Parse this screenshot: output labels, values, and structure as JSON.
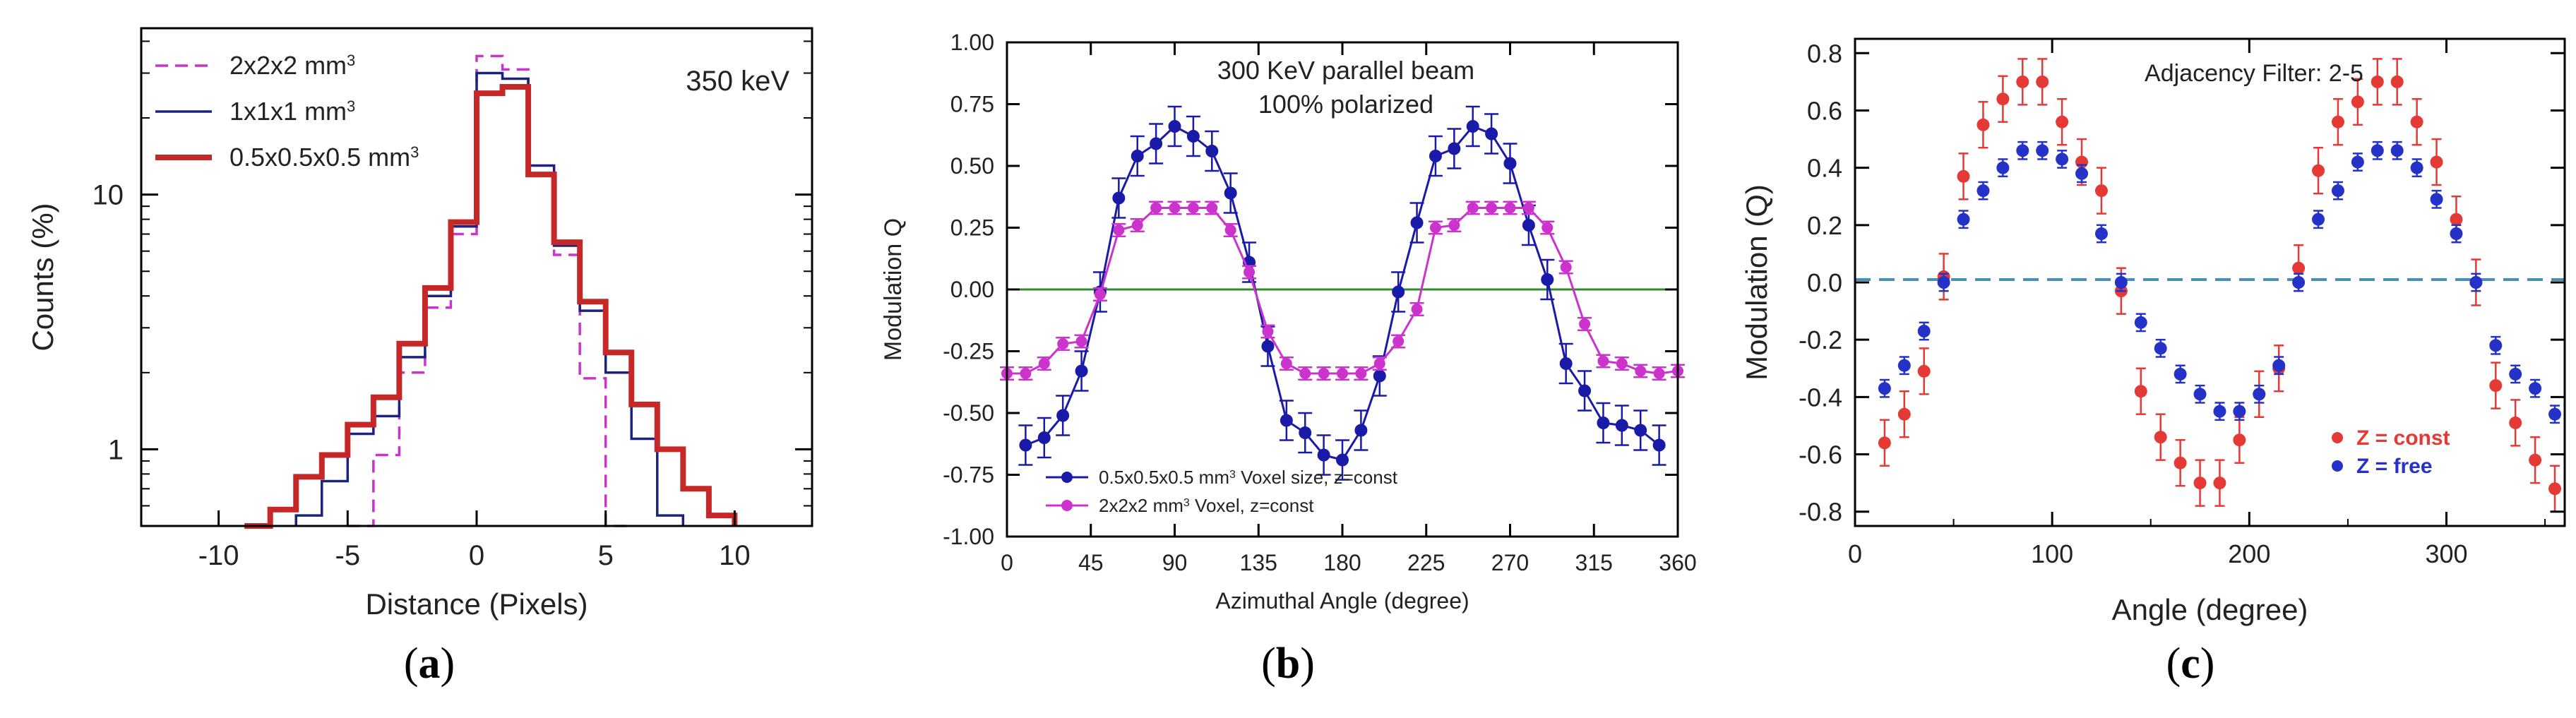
{
  "captions": {
    "a": "a",
    "b": "b",
    "c": "c"
  },
  "colors": {
    "magenta": "#cc33cc",
    "navy": "#1a237e",
    "red": "#c62828",
    "blue": "#1a1aa8",
    "green": "#2e8b2e",
    "cRed": "#e53935",
    "cBlue": "#2532c8",
    "dashed": "#4a8fb5"
  },
  "chart_data": [
    {
      "id": "a",
      "type": "line",
      "title": "",
      "annotation": "350 keV",
      "xlabel": "Distance (Pixels)",
      "ylabel": "Counts (%)",
      "xlim": [
        -13,
        13
      ],
      "ylim": [
        0.5,
        45
      ],
      "yscale": "log",
      "xticks": [
        -10,
        -5,
        0,
        5,
        10
      ],
      "yticks": [
        1,
        10
      ],
      "legend_position": "top-left",
      "series": [
        {
          "name": "2x2x2 mm",
          "superscript": "3",
          "style": "dashed",
          "color": "#cc33cc",
          "edges": [
            -5,
            -4,
            -3,
            -2,
            -1,
            0,
            1,
            2,
            3,
            4,
            5,
            6
          ],
          "values": [
            0.5,
            0.95,
            2.0,
            3.6,
            7.0,
            35.0,
            31.0,
            12.0,
            5.8,
            1.9,
            0.5
          ]
        },
        {
          "name": "1x1x1 mm",
          "superscript": "3",
          "style": "solid",
          "color": "#1a237e",
          "edges": [
            -7,
            -6,
            -5,
            -4,
            -3,
            -2,
            -1,
            0,
            1,
            2,
            3,
            4,
            5,
            6,
            7,
            8
          ],
          "values": [
            0.55,
            0.75,
            1.15,
            1.35,
            2.3,
            4.0,
            7.5,
            30.0,
            28.5,
            13.0,
            6.3,
            3.5,
            2.0,
            1.1,
            0.55
          ]
        },
        {
          "name": "0.5x0.5x0.5 mm",
          "superscript": "3",
          "style": "thick",
          "color": "#c62828",
          "edges": [
            -9,
            -8,
            -7,
            -6,
            -5,
            -4,
            -3,
            -2,
            -1,
            0,
            1,
            2,
            3,
            4,
            5,
            6,
            7,
            8,
            9,
            10
          ],
          "values": [
            0.5,
            0.58,
            0.78,
            0.95,
            1.25,
            1.6,
            2.6,
            4.3,
            7.8,
            25.0,
            26.5,
            12.0,
            6.5,
            3.8,
            2.4,
            1.5,
            1.0,
            0.7,
            0.55
          ]
        }
      ]
    },
    {
      "id": "b",
      "type": "line",
      "title": "300 KeV parallel beam",
      "subtitle": "100% polarized",
      "xlabel": "Azimuthal Angle (degree)",
      "ylabel": "Modulation Q",
      "xlim": [
        0,
        360
      ],
      "ylim": [
        -1.0,
        1.0
      ],
      "xticks": [
        0,
        45,
        90,
        135,
        180,
        225,
        270,
        315,
        360
      ],
      "yticks": [
        "-1.00",
        "-0.75",
        "-0.50",
        "-0.25",
        "0.00",
        "0.25",
        "0.50",
        "0.75",
        "1.00"
      ],
      "zero_line": true,
      "legend_position": "bottom-left",
      "series": [
        {
          "name": "0.5x0.5x0.5 mm",
          "superscript": "3",
          "suffix": " Voxel size, z=const",
          "color": "#1a1aa8",
          "x": [
            10,
            20,
            30,
            40,
            50,
            60,
            70,
            80,
            90,
            100,
            110,
            120,
            130,
            140,
            150,
            160,
            170,
            180,
            190,
            200,
            210,
            220,
            230,
            240,
            250,
            260,
            270,
            280,
            290,
            300,
            310,
            320,
            330,
            340,
            350
          ],
          "y": [
            -0.63,
            -0.6,
            -0.51,
            -0.33,
            -0.01,
            0.37,
            0.54,
            0.59,
            0.66,
            0.62,
            0.56,
            0.39,
            0.11,
            -0.23,
            -0.53,
            -0.58,
            -0.67,
            -0.69,
            -0.57,
            -0.35,
            -0.01,
            0.27,
            0.54,
            0.57,
            0.66,
            0.63,
            0.51,
            0.26,
            0.04,
            -0.3,
            -0.41,
            -0.54,
            -0.55,
            -0.57,
            -0.63
          ],
          "error": 0.08
        },
        {
          "name": "2x2x2 mm",
          "superscript": "3",
          "suffix": " Voxel, z=const",
          "color": "#cc33cc",
          "x": [
            0,
            10,
            20,
            30,
            40,
            50,
            60,
            70,
            80,
            90,
            100,
            110,
            120,
            130,
            140,
            150,
            160,
            170,
            180,
            190,
            200,
            210,
            220,
            230,
            240,
            250,
            260,
            270,
            280,
            290,
            300,
            310,
            320,
            330,
            340,
            350,
            360
          ],
          "y": [
            -0.34,
            -0.34,
            -0.3,
            -0.22,
            -0.21,
            -0.02,
            0.24,
            0.26,
            0.33,
            0.33,
            0.33,
            0.33,
            0.24,
            0.07,
            -0.17,
            -0.3,
            -0.34,
            -0.34,
            -0.34,
            -0.34,
            -0.3,
            -0.21,
            -0.08,
            0.25,
            0.26,
            0.33,
            0.33,
            0.33,
            0.33,
            0.25,
            0.09,
            -0.14,
            -0.29,
            -0.3,
            -0.33,
            -0.34,
            -0.33
          ],
          "error": 0.025
        }
      ]
    },
    {
      "id": "c",
      "type": "scatter",
      "title": "Adjacency Filter: 2-5",
      "xlabel": "Angle (degree)",
      "ylabel": "Modulation (Q)",
      "xlim": [
        0,
        360
      ],
      "ylim": [
        -0.85,
        0.85
      ],
      "xticks": [
        0,
        100,
        200,
        300
      ],
      "yticks": [
        "-0.8",
        "-0.6",
        "-0.4",
        "-0.2",
        "0.0",
        "0.2",
        "0.4",
        "0.6",
        "0.8"
      ],
      "zero_line": true,
      "legend_position": "bottom-right",
      "series": [
        {
          "name": "Z = const",
          "color": "#e53935",
          "x": [
            15,
            25,
            35,
            45,
            55,
            65,
            75,
            85,
            95,
            105,
            115,
            125,
            135,
            145,
            155,
            165,
            175,
            185,
            195,
            205,
            215,
            225,
            235,
            245,
            255,
            265,
            275,
            285,
            295,
            305,
            315,
            325,
            335,
            345,
            355
          ],
          "y": [
            -0.56,
            -0.46,
            -0.31,
            0.02,
            0.37,
            0.55,
            0.64,
            0.7,
            0.7,
            0.56,
            0.42,
            0.32,
            -0.03,
            -0.38,
            -0.54,
            -0.63,
            -0.7,
            -0.7,
            -0.55,
            -0.39,
            -0.3,
            0.05,
            0.39,
            0.56,
            0.63,
            0.7,
            0.7,
            0.56,
            0.42,
            0.22,
            0.0,
            -0.36,
            -0.49,
            -0.62,
            -0.72
          ],
          "error": 0.08
        },
        {
          "name": "Z = free",
          "color": "#2532c8",
          "x": [
            15,
            25,
            35,
            45,
            55,
            65,
            75,
            85,
            95,
            105,
            115,
            125,
            135,
            145,
            155,
            165,
            175,
            185,
            195,
            205,
            215,
            225,
            235,
            245,
            255,
            265,
            275,
            285,
            295,
            305,
            315,
            325,
            335,
            345,
            355
          ],
          "y": [
            -0.37,
            -0.29,
            -0.17,
            0.0,
            0.22,
            0.32,
            0.4,
            0.46,
            0.46,
            0.43,
            0.38,
            0.17,
            0.0,
            -0.14,
            -0.23,
            -0.32,
            -0.39,
            -0.45,
            -0.45,
            -0.39,
            -0.29,
            0.0,
            0.22,
            0.32,
            0.42,
            0.46,
            0.46,
            0.4,
            0.29,
            0.17,
            0.0,
            -0.22,
            -0.32,
            -0.37,
            -0.46
          ],
          "error": 0.03
        }
      ]
    }
  ]
}
